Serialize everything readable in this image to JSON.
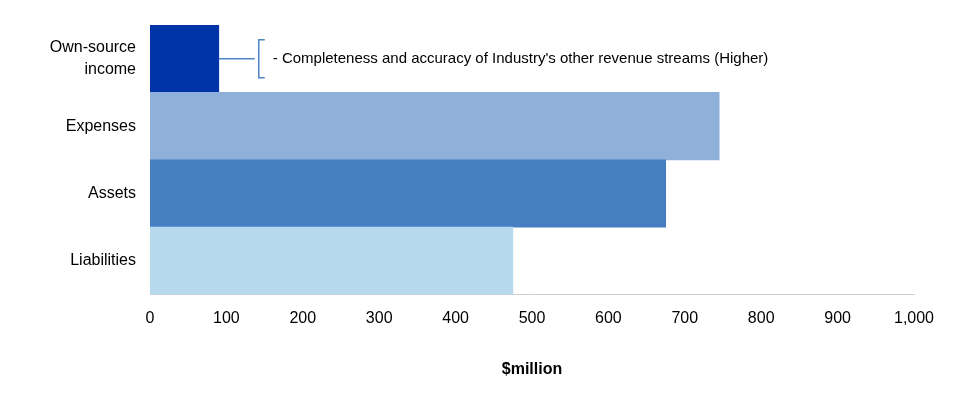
{
  "chart_data": {
    "type": "bar",
    "orientation": "horizontal",
    "categories": [
      "Own-source income",
      "Expenses",
      "Assets",
      "Liabilities"
    ],
    "values": [
      90,
      745,
      675,
      475
    ],
    "colors": [
      "#0033a8",
      "#8fb1d9",
      "#457fc2",
      "#b7d9ee"
    ],
    "xlim": [
      0,
      1000
    ],
    "xticks": [
      0,
      100,
      200,
      300,
      400,
      500,
      600,
      700,
      800,
      900,
      {
        "value": 1000,
        "label": "1,000"
      }
    ],
    "x_label": "$million",
    "grid": false,
    "annotations": [
      {
        "text": "- Completeness and accuracy of Industry's other revenue streams (Higher)",
        "category": "Own-source income"
      }
    ]
  }
}
